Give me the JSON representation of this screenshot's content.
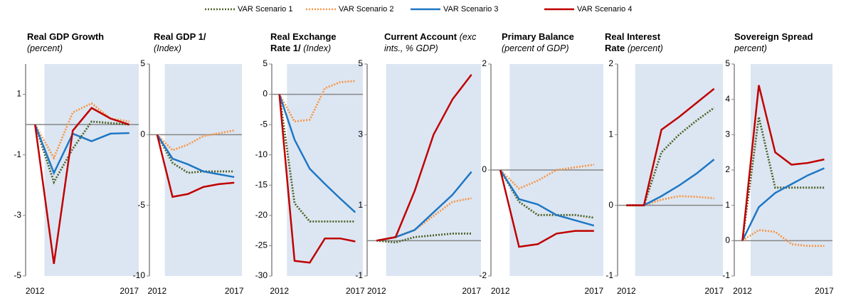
{
  "legend": [
    {
      "name": "VAR Scenario 1",
      "color": "#4f6228",
      "dash": true
    },
    {
      "name": "VAR Scenario 2",
      "color": "#f79646",
      "dash": true
    },
    {
      "name": "VAR Scenario 3",
      "color": "#1f77c4",
      "dash": false
    },
    {
      "name": "VAR Scenario 4",
      "color": "#c00000",
      "dash": false
    }
  ],
  "chart_data": [
    {
      "type": "line",
      "title": "Real GDP Growth",
      "subtitle": "(percent)",
      "x": [
        2012,
        2013,
        2014,
        2015,
        2016,
        2017
      ],
      "xlim": [
        2011.5,
        2017.5
      ],
      "xticks": [
        2012,
        2017
      ],
      "ylim": [
        -5,
        2
      ],
      "yticks": [
        -5,
        -3,
        -1,
        1
      ],
      "shaded_range": [
        2012.5,
        2017.5
      ],
      "zero_line": true,
      "series": [
        {
          "values": [
            0,
            -1.9,
            -0.8,
            0.1,
            0.05,
            0.0
          ]
        },
        {
          "values": [
            0,
            -1.1,
            0.4,
            0.7,
            0.2,
            0.1
          ]
        },
        {
          "values": [
            0,
            -1.6,
            -0.3,
            -0.55,
            -0.3,
            -0.28
          ]
        },
        {
          "values": [
            0,
            -4.6,
            -0.2,
            0.55,
            0.2,
            0.0
          ]
        }
      ]
    },
    {
      "type": "line",
      "title": "Real GDP 1/",
      "subtitle": "(Index)",
      "x": [
        2012,
        2013,
        2014,
        2015,
        2016,
        2017
      ],
      "xlim": [
        2011.5,
        2017.5
      ],
      "xticks": [
        2012,
        2017
      ],
      "ylim": [
        -10,
        5
      ],
      "yticks": [
        -10,
        -5,
        0,
        5
      ],
      "shaded_range": [
        2012.5,
        2017.5
      ],
      "zero_line": true,
      "series": [
        {
          "values": [
            0,
            -2.0,
            -2.7,
            -2.6,
            -2.6,
            -2.6
          ]
        },
        {
          "values": [
            0,
            -1.1,
            -0.7,
            -0.1,
            0.1,
            0.3
          ]
        },
        {
          "values": [
            0,
            -1.7,
            -2.1,
            -2.6,
            -2.8,
            -3.0
          ]
        },
        {
          "values": [
            0,
            -4.4,
            -4.2,
            -3.7,
            -3.5,
            -3.4
          ]
        }
      ]
    },
    {
      "type": "line",
      "title": "Real Exchange Rate 1/",
      "subtitle": "(Index)",
      "x": [
        2012,
        2013,
        2014,
        2015,
        2016,
        2017
      ],
      "xlim": [
        2011.5,
        2017.5
      ],
      "xticks": [
        2012,
        2017
      ],
      "ylim": [
        -30,
        5
      ],
      "yticks": [
        -30,
        -25,
        -20,
        -15,
        -10,
        -5,
        0,
        5
      ],
      "shaded_range": [
        2012.5,
        2017.5
      ],
      "zero_line": true,
      "series": [
        {
          "values": [
            0,
            -18,
            -21,
            -21,
            -21,
            -21
          ]
        },
        {
          "values": [
            0,
            -4.5,
            -4.2,
            1,
            2,
            2.2
          ]
        },
        {
          "values": [
            0,
            -7.5,
            -12.3,
            -14.8,
            -17.2,
            -19.5
          ]
        },
        {
          "values": [
            0,
            -27.5,
            -27.8,
            -23.8,
            -23.8,
            -24.3
          ]
        }
      ]
    },
    {
      "type": "line",
      "title": "Current Account",
      "subtitle": "(exc ints., % GDP)",
      "x": [
        2012,
        2013,
        2014,
        2015,
        2016,
        2017
      ],
      "xlim": [
        2011.5,
        2017.5
      ],
      "xticks": [
        2012,
        2017
      ],
      "ylim": [
        -1,
        5
      ],
      "yticks": [
        -1,
        1,
        3,
        5
      ],
      "shaded_range": [
        2012.5,
        2017.5
      ],
      "zero_line": true,
      "series": [
        {
          "values": [
            0,
            -0.05,
            0.1,
            0.15,
            0.2,
            0.2
          ]
        },
        {
          "values": [
            0,
            0.1,
            0.3,
            0.7,
            1.1,
            1.2
          ]
        },
        {
          "values": [
            0,
            0.1,
            0.3,
            0.8,
            1.3,
            1.95
          ]
        },
        {
          "values": [
            0,
            0.1,
            1.4,
            3.0,
            4.0,
            4.7
          ]
        }
      ]
    },
    {
      "type": "line",
      "title": "Primary Balance",
      "subtitle": "(percent of GDP)",
      "x": [
        2012,
        2013,
        2014,
        2015,
        2016,
        2017
      ],
      "xlim": [
        2011.5,
        2017.5
      ],
      "xticks": [
        2012,
        2017
      ],
      "ylim": [
        -2,
        2
      ],
      "yticks": [
        -2,
        0,
        2
      ],
      "shaded_range": [
        2012.5,
        2017.5
      ],
      "zero_line": true,
      "series": [
        {
          "values": [
            0,
            -0.6,
            -0.85,
            -0.85,
            -0.85,
            -0.9
          ]
        },
        {
          "values": [
            0,
            -0.35,
            -0.2,
            0.0,
            0.05,
            0.1
          ]
        },
        {
          "values": [
            0,
            -0.55,
            -0.65,
            -0.85,
            -0.95,
            -1.05
          ]
        },
        {
          "values": [
            0,
            -1.45,
            -1.4,
            -1.2,
            -1.15,
            -1.15
          ]
        }
      ]
    },
    {
      "type": "line",
      "title": "Real Interest Rate",
      "subtitle": "(percent)",
      "x": [
        2012,
        2013,
        2014,
        2015,
        2016,
        2017
      ],
      "xlim": [
        2011.5,
        2017.5
      ],
      "xticks": [
        2012,
        2017
      ],
      "ylim": [
        -1,
        2
      ],
      "yticks": [
        -1,
        0,
        1,
        2
      ],
      "shaded_range": [
        2012.5,
        2017.5
      ],
      "zero_line": true,
      "series": [
        {
          "values": [
            0,
            0,
            0.75,
            1.0,
            1.2,
            1.38
          ]
        },
        {
          "values": [
            0,
            0,
            0.08,
            0.13,
            0.12,
            0.1
          ]
        },
        {
          "values": [
            0,
            0,
            0.13,
            0.28,
            0.45,
            0.65
          ]
        },
        {
          "values": [
            0,
            0,
            1.07,
            1.25,
            1.45,
            1.65
          ]
        }
      ]
    },
    {
      "type": "line",
      "title": "Sovereign Spread",
      "subtitle": "percent)",
      "x": [
        2012,
        2013,
        2014,
        2015,
        2016,
        2017
      ],
      "xlim": [
        2011.5,
        2017.5
      ],
      "xticks": [
        2012,
        2017
      ],
      "ylim": [
        -1,
        5
      ],
      "yticks": [
        -1,
        0,
        1,
        2,
        3,
        4,
        5
      ],
      "shaded_range": [
        2012.5,
        2017.5
      ],
      "zero_line": true,
      "series": [
        {
          "values": [
            0,
            3.5,
            1.5,
            1.5,
            1.5,
            1.5
          ]
        },
        {
          "values": [
            0,
            0.3,
            0.25,
            -0.1,
            -0.15,
            -0.15
          ]
        },
        {
          "values": [
            0,
            0.95,
            1.35,
            1.6,
            1.85,
            2.05
          ]
        },
        {
          "values": [
            0,
            4.4,
            2.5,
            2.15,
            2.2,
            2.3
          ]
        }
      ]
    }
  ]
}
